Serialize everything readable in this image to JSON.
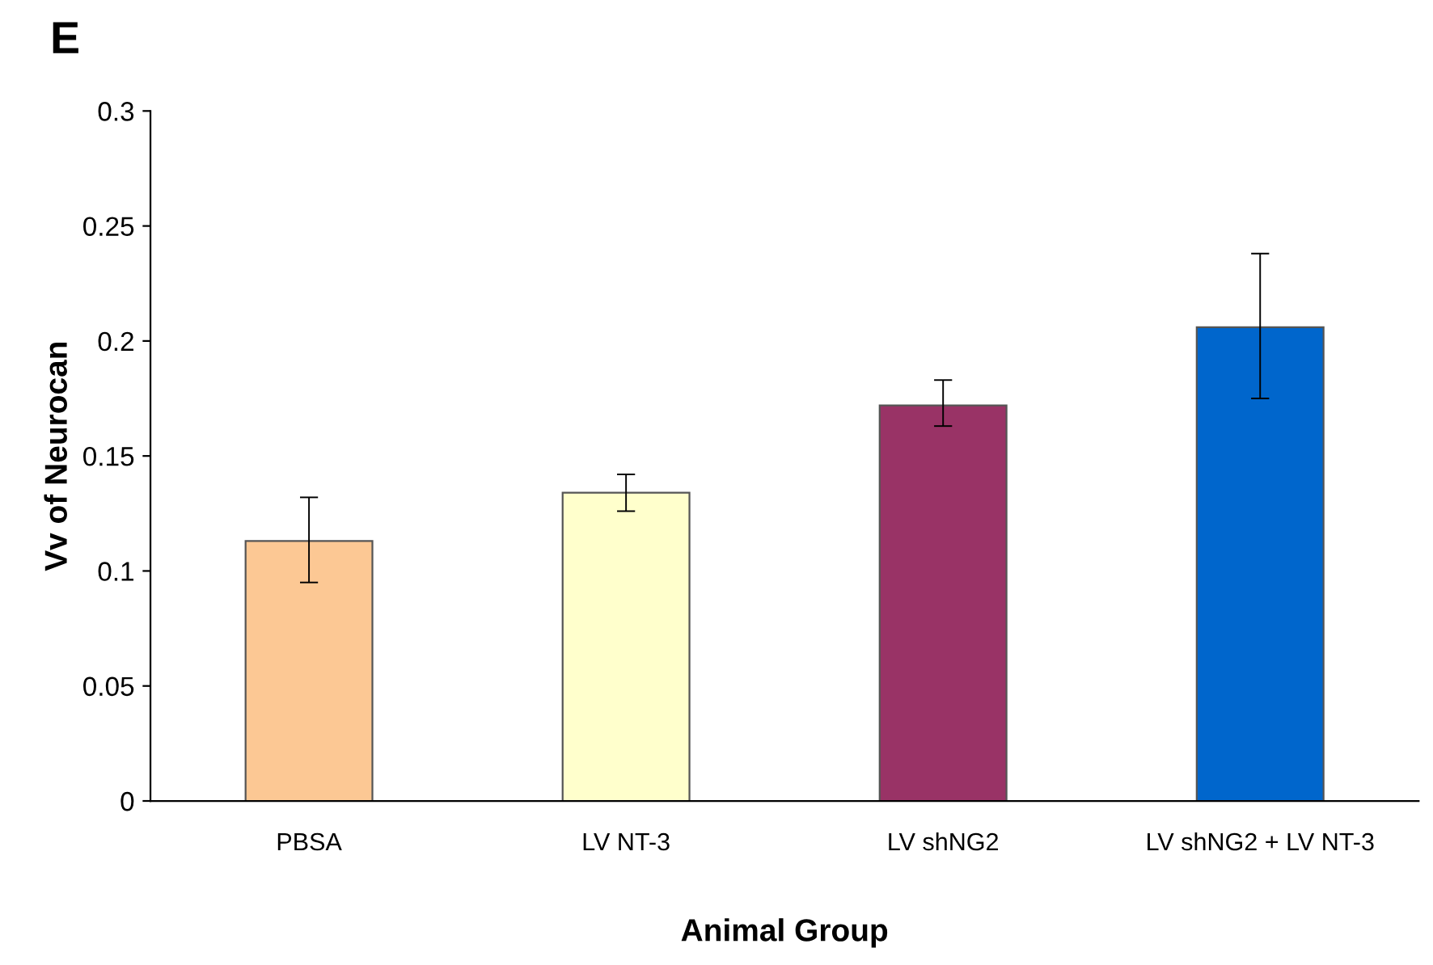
{
  "chart_data": {
    "type": "bar",
    "ylabel": "Vv of Neurocan",
    "xlabel": "Animal Group",
    "annotations": [
      "E"
    ],
    "categories": [
      "PBSA",
      "LV NT-3",
      "LV shNG2",
      "LV shNG2 + LV NT-3"
    ],
    "values": [
      0.113,
      0.134,
      0.172,
      0.206
    ],
    "colors": [
      "#fcc894",
      "#ffffcc",
      "#993366",
      "#0066cc"
    ],
    "errors": [
      [
        0.095,
        0.132
      ],
      [
        0.126,
        0.142
      ],
      [
        0.163,
        0.183
      ],
      [
        0.175,
        0.238
      ]
    ],
    "ylim": [
      0,
      0.3
    ],
    "yticks": [
      0,
      0.05,
      0.1,
      0.15,
      0.2,
      0.25,
      0.3
    ],
    "grid": false,
    "legend": false
  }
}
